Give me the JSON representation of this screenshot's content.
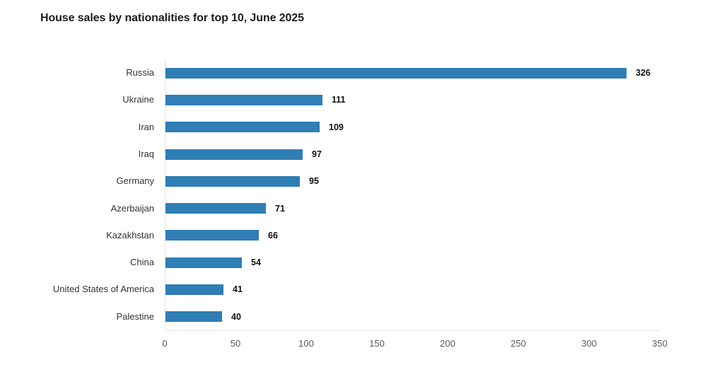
{
  "chart_data": {
    "type": "bar",
    "orientation": "horizontal",
    "title": "House sales by nationalities for top 10, June 2025",
    "categories": [
      "Russia",
      "Ukraine",
      "Iran",
      "Iraq",
      "Germany",
      "Azerbaijan",
      "Kazakhstan",
      "China",
      "United States of America",
      "Palestine"
    ],
    "values": [
      326,
      111,
      109,
      97,
      95,
      71,
      66,
      54,
      41,
      40
    ],
    "xlabel": "",
    "ylabel": "",
    "xlim": [
      0,
      350
    ],
    "x_ticks": [
      0,
      50,
      100,
      150,
      200,
      250,
      300,
      350
    ],
    "grid": false,
    "legend": false,
    "value_labels_shown": true
  },
  "colors": {
    "bar": "#2f7eb5",
    "axis_line": "#e4e4e4",
    "title_text": "#1c1c1e",
    "category_text": "#333333",
    "value_text": "#111111",
    "tick_text": "#58595b",
    "background": "#ffffff"
  }
}
